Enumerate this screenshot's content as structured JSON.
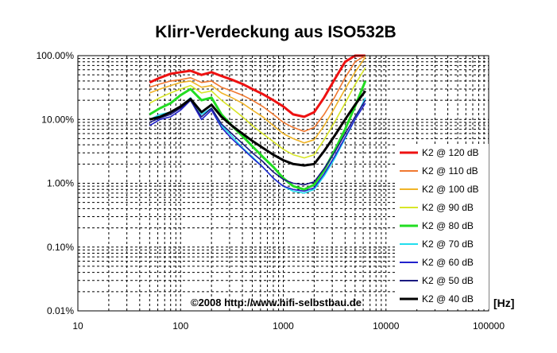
{
  "chart_data": {
    "type": "line",
    "title": "Klirr-Verdeckung aus ISO532B",
    "xlabel": "",
    "ylabel": "",
    "x_unit_label": "[Hz]",
    "copyright": "©2008 http://www.hifi-selbstbau.de",
    "x_scale": "log",
    "y_scale": "log",
    "xlim": [
      10,
      100000
    ],
    "ylim": [
      0.01,
      100
    ],
    "x_tick_labels": [
      "10",
      "100",
      "1000",
      "10000",
      "100000"
    ],
    "y_tick_labels": [
      "0.01%",
      "0.10%",
      "1.00%",
      "10.00%",
      "100.00%"
    ],
    "grid": true,
    "legend_position": "right",
    "x": [
      50,
      63,
      80,
      100,
      125,
      160,
      200,
      250,
      315,
      400,
      500,
      630,
      800,
      1000,
      1250,
      1600,
      2000,
      2500,
      3150,
      4000,
      5000,
      6300
    ],
    "series": [
      {
        "name": "K2 @ 120 dB",
        "color": "#ee1111",
        "values": [
          38,
          45,
          52,
          55,
          58,
          50,
          55,
          48,
          42,
          36,
          30,
          25,
          20,
          16,
          12,
          11,
          13,
          22,
          42,
          80,
          100,
          100
        ]
      },
      {
        "name": "K2 @ 110 dB",
        "color": "#f07830",
        "values": [
          32,
          36,
          40,
          42,
          45,
          38,
          40,
          32,
          28,
          24,
          20,
          16,
          12,
          9,
          7.5,
          6.5,
          7.5,
          12,
          22,
          45,
          80,
          100
        ]
      },
      {
        "name": "K2 @ 100 dB",
        "color": "#f0b428",
        "values": [
          26,
          30,
          34,
          38,
          40,
          32,
          34,
          26,
          22,
          18,
          14,
          11,
          8,
          6,
          5,
          4.3,
          4.8,
          8,
          15,
          30,
          55,
          95
        ]
      },
      {
        "name": "K2 @ 90 dB",
        "color": "#d8e628",
        "values": [
          18,
          22,
          26,
          30,
          34,
          26,
          28,
          20,
          15,
          11,
          8,
          6,
          4.5,
          3.4,
          2.8,
          2.5,
          2.8,
          4.8,
          9,
          18,
          35,
          65
        ]
      },
      {
        "name": "K2 @ 80 dB",
        "color": "#22dd22",
        "values": [
          12,
          15,
          18,
          24,
          30,
          20,
          22,
          12,
          8,
          5.5,
          3.8,
          2.6,
          1.8,
          1.2,
          0.9,
          0.8,
          0.95,
          1.6,
          3.2,
          7,
          16,
          40
        ]
      },
      {
        "name": "K2 @ 70 dB",
        "color": "#22ddee",
        "values": [
          10,
          12,
          13,
          16,
          22,
          12,
          15,
          8,
          5.5,
          3.6,
          2.6,
          1.8,
          1.2,
          0.9,
          0.75,
          0.7,
          0.8,
          1.3,
          2.4,
          5,
          10,
          22
        ]
      },
      {
        "name": "K2 @ 60 dB",
        "color": "#2222cc",
        "values": [
          8,
          10,
          11,
          14,
          20,
          10,
          14,
          7.5,
          5,
          3.5,
          2.5,
          1.8,
          1.2,
          0.9,
          0.8,
          0.75,
          0.85,
          1.4,
          2.6,
          5.2,
          10,
          18
        ]
      },
      {
        "name": "K2 @ 50 dB",
        "color": "#1a1a80",
        "values": [
          9,
          10.5,
          12,
          15,
          20,
          11,
          15,
          8.5,
          6,
          4.2,
          3,
          2.2,
          1.5,
          1.15,
          1,
          0.95,
          1.05,
          1.7,
          3,
          6,
          11,
          20
        ]
      },
      {
        "name": "K2 @ 40 dB",
        "color": "#000000",
        "values": [
          10,
          11,
          13,
          16,
          21,
          13,
          17,
          11,
          8,
          6,
          4.6,
          3.6,
          2.8,
          2.3,
          2,
          1.9,
          2,
          3.2,
          5.5,
          10,
          17,
          28
        ]
      }
    ]
  }
}
